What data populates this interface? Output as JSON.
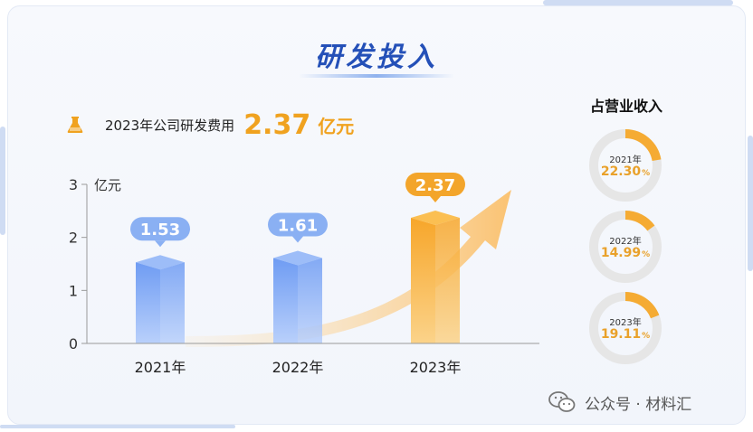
{
  "title": "研发投入",
  "summary": {
    "label": "2023年公司研发费用",
    "value": "2.37",
    "unit": "亿元"
  },
  "chart_data": [
    {
      "type": "bar",
      "categories": [
        "2021年",
        "2022年",
        "2023年"
      ],
      "values": [
        1.53,
        1.61,
        2.37
      ],
      "value_labels": [
        "1.53",
        "1.61",
        "2.37"
      ],
      "ylabel": "亿元",
      "ylim": [
        0,
        3
      ],
      "yticks": [
        0,
        1,
        2,
        3
      ],
      "grid": false,
      "highlight_category": "2023年",
      "colors": {
        "bar": "#7aa6f5",
        "highlight": "#f5a623"
      }
    },
    {
      "type": "pie",
      "title": "占营业收入",
      "items": [
        {
          "year": "2021年",
          "value": 22.3,
          "label": "22.30",
          "unit": "%"
        },
        {
          "year": "2022年",
          "value": 14.99,
          "label": "14.99",
          "unit": "%"
        },
        {
          "year": "2023年",
          "value": 19.11,
          "label": "19.11",
          "unit": "%"
        }
      ],
      "colors": {
        "filled": "#f5ab33",
        "track": "#e6e6e6"
      }
    }
  ],
  "watermark": {
    "text": "公众号 · 材料汇",
    "icon": "wechat-icon"
  }
}
